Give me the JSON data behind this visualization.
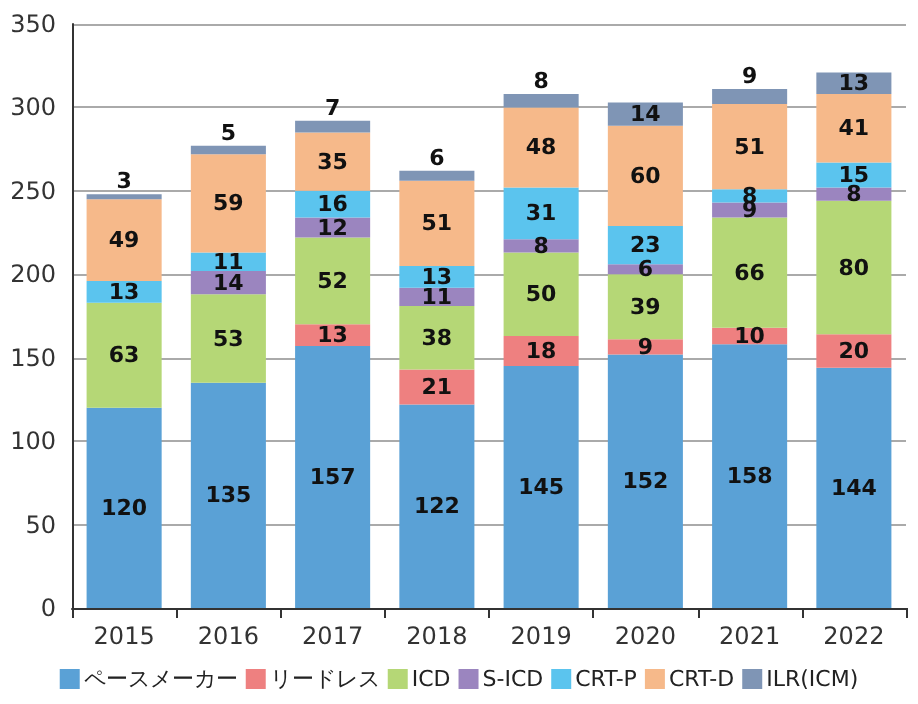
{
  "chart_data": {
    "type": "bar",
    "stacked": true,
    "categories": [
      "2015",
      "2016",
      "2017",
      "2018",
      "2019",
      "2020",
      "2021",
      "2022"
    ],
    "series": [
      {
        "name": "ペースメーカー",
        "color": "#5aa1d6",
        "values": [
          120,
          135,
          157,
          122,
          145,
          152,
          158,
          144
        ]
      },
      {
        "name": "リードレス",
        "color": "#ee8080",
        "values": [
          null,
          null,
          13,
          21,
          18,
          9,
          10,
          20
        ]
      },
      {
        "name": "ICD",
        "color": "#b5d776",
        "values": [
          63,
          53,
          52,
          38,
          50,
          39,
          66,
          80
        ]
      },
      {
        "name": "S-ICD",
        "color": "#9b85bf",
        "values": [
          null,
          14,
          12,
          11,
          8,
          6,
          9,
          8
        ]
      },
      {
        "name": "CRT-P",
        "color": "#5bc4ee",
        "values": [
          13,
          11,
          16,
          13,
          31,
          23,
          8,
          15
        ]
      },
      {
        "name": "CRT-D",
        "color": "#f6b98a",
        "values": [
          49,
          59,
          35,
          51,
          48,
          60,
          51,
          41
        ]
      },
      {
        "name": "ILR(ICM)",
        "color": "#7f95b5",
        "values": [
          3,
          5,
          7,
          6,
          8,
          14,
          9,
          13
        ]
      }
    ],
    "ylim": [
      0,
      350
    ],
    "yticks": [
      0,
      50,
      100,
      150,
      200,
      250,
      300,
      350
    ],
    "grid": "y",
    "legend": "bottom",
    "data_labels": true
  }
}
